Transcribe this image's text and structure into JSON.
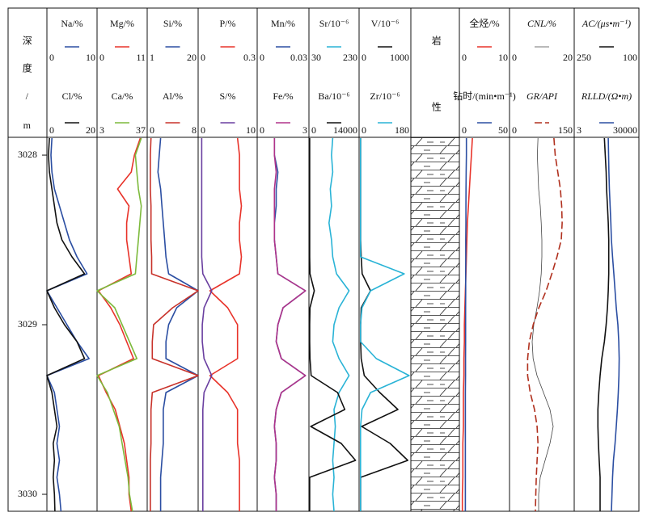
{
  "chart_data": {
    "type": "well-log",
    "y_label": "深度/m",
    "ylim": [
      3027.895,
      3030.1
    ],
    "yticks": [
      3028,
      3029,
      3030
    ],
    "depths": [
      3027.9,
      3028.0,
      3028.1,
      3028.2,
      3028.3,
      3028.4,
      3028.5,
      3028.6,
      3028.7,
      3028.8,
      3028.9,
      3029.0,
      3029.1,
      3029.2,
      3029.3,
      3029.4,
      3029.5,
      3029.6,
      3029.7,
      3029.8,
      3029.9,
      3030.0,
      3030.1
    ],
    "tracks": [
      {
        "curves": [
          {
            "name": "Na/%",
            "color": "#2b4ea2",
            "xlim": [
              0,
              10
            ],
            "values": [
              1,
              0.8,
              1,
              1.5,
              2.5,
              3.5,
              4.5,
              6,
              8,
              0,
              2,
              4,
              6,
              8.4,
              0,
              1.5,
              2,
              2.5,
              2,
              2.5,
              2,
              2.5,
              2.8
            ]
          },
          {
            "name": "Cl/%",
            "color": "#111111",
            "xlim": [
              0,
              20
            ],
            "values": [
              1,
              0.6,
              1,
              2,
              3,
              4,
              6,
              10,
              15,
              0,
              3,
              7,
              12,
              15,
              0,
              2,
              3,
              4,
              2.5,
              3,
              2.5,
              3,
              3.2
            ]
          }
        ]
      },
      {
        "curves": [
          {
            "name": "Mg/%",
            "color": "#e8332a",
            "xlim": [
              0,
              11
            ],
            "values": [
              9.5,
              8.2,
              7.5,
              4.5,
              7,
              6.5,
              6.5,
              7,
              7.5,
              0.3,
              3,
              5,
              6.5,
              8,
              0.3,
              2,
              4,
              5,
              6,
              6.5,
              7,
              7,
              7.5
            ]
          },
          {
            "name": "Ca/%",
            "color": "#7dba3c",
            "xlim": [
              3,
              37
            ],
            "values": [
              33,
              29,
              30,
              31,
              33,
              32,
              31,
              30,
              29,
              3,
              15,
              20,
              25,
              30,
              3,
              10,
              14,
              18,
              20,
              22,
              24,
              25,
              27
            ]
          }
        ]
      },
      {
        "curves": [
          {
            "name": "Si/%",
            "color": "#2b4ea2",
            "xlim": [
              1,
              20
            ],
            "values": [
              6,
              5.5,
              5,
              6,
              6.5,
              7,
              7.5,
              8,
              9,
              20,
              12,
              9,
              8,
              8,
              20,
              8,
              7,
              7,
              7,
              6.5,
              6,
              6,
              6
            ]
          },
          {
            "name": "Al/%",
            "color": "#c8322a",
            "xlim": [
              0,
              8
            ],
            "values": [
              0.6,
              0.5,
              0.5,
              0.5,
              0.6,
              0.6,
              0.6,
              0.7,
              0.7,
              8,
              4,
              1,
              0.8,
              0.8,
              8,
              0.8,
              0.6,
              0.6,
              0.6,
              0.5,
              0.5,
              0.5,
              0.5
            ]
          }
        ]
      },
      {
        "curves": [
          {
            "name": "P/%",
            "color": "#e8332a",
            "xlim": [
              0,
              0.3
            ],
            "values": [
              0.2,
              0.21,
              0.21,
              0.21,
              0.22,
              0.21,
              0.21,
              0.22,
              0.21,
              0.06,
              0.15,
              0.2,
              0.2,
              0.2,
              0.06,
              0.15,
              0.2,
              0.2,
              0.2,
              0.21,
              0.21,
              0.21,
              0.21
            ]
          },
          {
            "name": "S/%",
            "color": "#6a3fa0",
            "xlim": [
              0,
              10
            ],
            "values": [
              0.6,
              0.6,
              0.6,
              0.6,
              0.6,
              0.6,
              0.6,
              0.6,
              0.8,
              2.3,
              1,
              0.7,
              0.7,
              1,
              2.3,
              1,
              0.8,
              0.8,
              0.8,
              0.8,
              0.8,
              0.8,
              0.8
            ]
          }
        ]
      },
      {
        "curves": [
          {
            "name": "Mn/%",
            "color": "#2b4ea2",
            "xlim": [
              0,
              0.03
            ],
            "values": [
              0.01,
              0.01,
              0.012,
              0.011,
              0.011,
              0.01,
              0.01,
              0.011,
              0.012,
              0.028,
              0.015,
              0.012,
              0.011,
              0.014,
              0.028,
              0.014,
              0.011,
              0.01,
              0.011,
              0.011,
              0.01,
              0.011,
              0.011
            ]
          },
          {
            "name": "Fe/%",
            "color": "#b0338a",
            "xlim": [
              0,
              3
            ],
            "values": [
              1,
              1,
              1.1,
              1,
              1,
              1,
              1,
              1.1,
              1.2,
              2.8,
              1.5,
              1.2,
              1.1,
              1.4,
              2.8,
              1.4,
              1.1,
              1,
              1.1,
              1.1,
              1,
              1.1,
              1.1
            ]
          }
        ]
      },
      {
        "curves": [
          {
            "name": "Sr/10⁻⁶",
            "color": "#29b3d6",
            "xlim": [
              30,
              230
            ],
            "values": [
              125,
              120,
              125,
              115,
              120,
              110,
              120,
              125,
              140,
              190,
              150,
              130,
              125,
              150,
              190,
              150,
              130,
              135,
              130,
              125,
              130,
              125,
              130
            ]
          },
          {
            "name": "Ba/10⁻⁶",
            "color": "#111111",
            "xlim": [
              0,
              14000
            ],
            "values": [
              200,
              200,
              200,
              200,
              200,
              200,
              200,
              200,
              300,
              1500,
              300,
              200,
              200,
              300,
              600,
              8000,
              10000,
              500,
              9000,
              13000,
              200,
              200,
              200
            ]
          }
        ]
      },
      {
        "curves": [
          {
            "name": "V/10⁻⁶",
            "color": "#111111",
            "xlim": [
              0,
              1000
            ],
            "values": [
              30,
              30,
              30,
              30,
              30,
              30,
              30,
              40,
              60,
              220,
              40,
              30,
              30,
              40,
              100,
              400,
              750,
              50,
              600,
              940,
              30,
              30,
              30
            ]
          },
          {
            "name": "Zr/10⁻⁶",
            "color": "#29b3d6",
            "xlim": [
              0,
              180
            ],
            "values": [
              5,
              5,
              5,
              5,
              5,
              5,
              5,
              5,
              157,
              40,
              10,
              5,
              5,
              60,
              174,
              40,
              10,
              5,
              5,
              5,
              5,
              5,
              5
            ]
          }
        ]
      },
      {
        "label": "岩性",
        "curves": []
      },
      {
        "curves": [
          {
            "name": "全烃/%",
            "color": "#e8332a",
            "xlim": [
              0,
              10
            ],
            "values": [
              2.6,
              2.4,
              2.2,
              2,
              1.8,
              1.6,
              1.5,
              1.4,
              1.3,
              1.2,
              1.1,
              1,
              1,
              0.9,
              0.9,
              0.8,
              0.8,
              0.8,
              0.7,
              0.7,
              0.7,
              0.6,
              0.6
            ]
          },
          {
            "name": "钻时/(min•m⁻¹)",
            "color": "#2b4ea2",
            "xlim": [
              0,
              50
            ],
            "values": [
              7,
              7,
              6.8,
              6.6,
              6.5,
              6.5,
              6.4,
              6.4,
              6.3,
              6.3,
              6.2,
              6.2,
              6.2,
              6.1,
              6.1,
              6,
              6,
              6,
              6,
              6,
              6,
              6,
              6
            ]
          }
        ]
      },
      {
        "curves": [
          {
            "name": "CNL/%",
            "color": "#444444",
            "thin": true,
            "xlim": [
              0,
              20
            ],
            "values": [
              8.8,
              8.6,
              8.8,
              9,
              9.5,
              9.8,
              10,
              10,
              9.8,
              9.3,
              8.5,
              7.5,
              7,
              7.3,
              8.5,
              10.5,
              12.5,
              13.5,
              12.5,
              11,
              9.5,
              9,
              9
            ]
          },
          {
            "name": "GR/API",
            "color": "#b0301e",
            "dashed": true,
            "xlim": [
              0,
              150
            ],
            "values": [
              103,
              106,
              112,
              118,
              121,
              122,
              120,
              110,
              98,
              85,
              68,
              55,
              46,
              42,
              42,
              48,
              58,
              64,
              66,
              64,
              62,
              61,
              60
            ]
          }
        ]
      },
      {
        "curves": [
          {
            "name": "AC/(μs•m⁻¹)",
            "color": "#111111",
            "xlim": [
              250,
              100
            ],
            "values": [
              180,
              178,
              176,
              175,
              173,
              171,
              170,
              170,
              170,
              171,
              173,
              176,
              180,
              186,
              190,
              193,
              195,
              195,
              194,
              192,
              190,
              190,
              190
            ]
          },
          {
            "name": "RLLD/(Ω•m)",
            "color": "#2b4ea2",
            "log": true,
            "xlim": [
              3,
              30000
            ],
            "values": [
              380,
              400,
              420,
              450,
              500,
              550,
              600,
              700,
              850,
              1000,
              1200,
              1500,
              1700,
              1800,
              1750,
              1600,
              1400,
              1200,
              1000,
              800,
              700,
              650,
              600
            ]
          }
        ]
      }
    ]
  }
}
